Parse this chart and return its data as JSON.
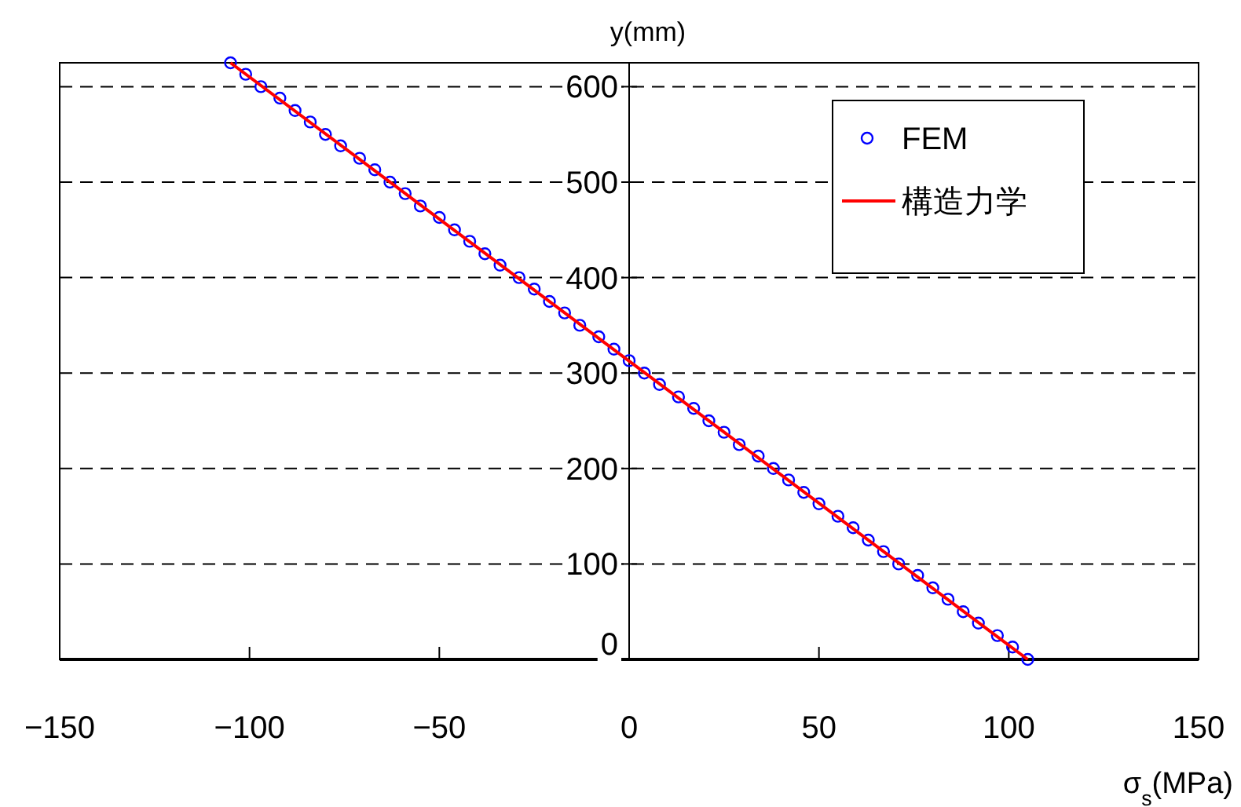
{
  "chart_data": {
    "type": "scatter",
    "xlabel": "σ$_{s}$(MPa)",
    "ylabel": "y(mm)",
    "xlim": [
      -150,
      150
    ],
    "ylim": [
      0,
      625
    ],
    "xticks": [
      -150,
      -100,
      -50,
      0,
      50,
      100,
      150
    ],
    "yticks": [
      0,
      100,
      200,
      300,
      400,
      500,
      600
    ],
    "grid": "y",
    "legend": "top right",
    "series": [
      {
        "name": "FEM",
        "type": "scatter",
        "marker": "circle",
        "color": "#0000ff",
        "x": [
          105,
          101,
          97,
          92,
          88,
          84,
          80,
          76,
          71,
          67,
          63,
          59,
          55,
          50,
          46,
          42,
          38,
          34,
          29,
          25,
          21,
          17,
          13,
          8,
          4,
          0,
          -4,
          -8,
          -13,
          -17,
          -21,
          -25,
          -29,
          -34,
          -38,
          -42,
          -46,
          -50,
          -55,
          -59,
          -63,
          -67,
          -71,
          -76,
          -80,
          -84,
          -88,
          -92,
          -97,
          -101,
          -105
        ],
        "values": [
          0,
          13,
          25,
          38,
          50,
          63,
          75,
          88,
          100,
          113,
          125,
          138,
          150,
          163,
          175,
          188,
          200,
          213,
          225,
          238,
          250,
          263,
          275,
          288,
          300,
          313,
          325,
          338,
          350,
          363,
          375,
          388,
          400,
          413,
          425,
          438,
          450,
          463,
          475,
          488,
          500,
          513,
          525,
          538,
          550,
          563,
          575,
          588,
          600,
          613,
          625
        ]
      },
      {
        "name": "構造力学",
        "type": "line",
        "marker": "none",
        "color": "#ff0000",
        "x": [
          105,
          -105
        ],
        "values": [
          0,
          625
        ]
      }
    ]
  }
}
